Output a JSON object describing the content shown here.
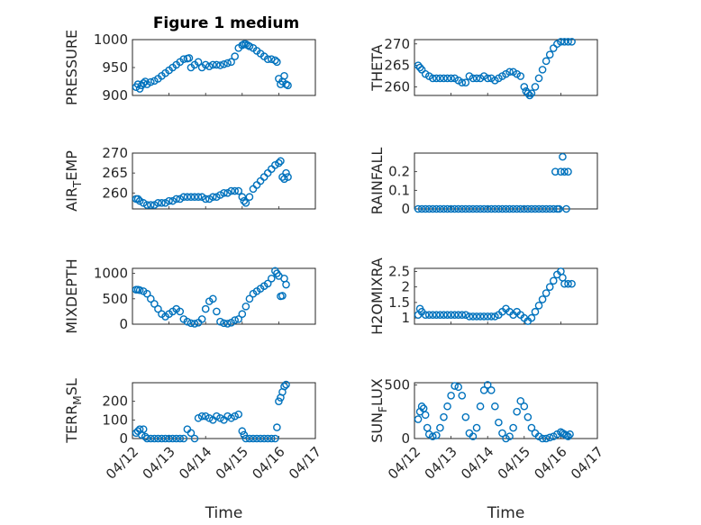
{
  "figure": {
    "title": "Figure 1 medium"
  },
  "colors": {
    "marker": "#0072BD",
    "axes": "#262626",
    "grid": "#dcdcdc"
  },
  "chart_data": [
    {
      "id": "pressure",
      "type": "scatter",
      "title": "Figure 1 medium",
      "ylabel_main": "PRESSURE",
      "ylabel_sub": "",
      "ylabel_tail": "",
      "xlabel": "",
      "ylim": [
        900,
        1000
      ],
      "xlim": [
        0,
        5
      ],
      "yticks": [
        900,
        950,
        1000
      ],
      "yticks_labels": [
        "900",
        "950",
        "1000"
      ],
      "xticks_labels": [],
      "series": [
        {
          "x": [
            0.1,
            0.15,
            0.2,
            0.25,
            0.3,
            0.35,
            0.4,
            0.5,
            0.6,
            0.7,
            0.8,
            0.9,
            1.0,
            1.1,
            1.2,
            1.3,
            1.4,
            1.5,
            1.55,
            1.6,
            1.7,
            1.8,
            1.9,
            2.0,
            2.1,
            2.2,
            2.3,
            2.4,
            2.5,
            2.6,
            2.7,
            2.8,
            2.9,
            3.0,
            3.05,
            3.1,
            3.15,
            3.2,
            3.3,
            3.4,
            3.5,
            3.6,
            3.7,
            3.8,
            3.9,
            3.95,
            4.0,
            4.05,
            4.1,
            4.15,
            4.2,
            4.25
          ],
          "y": [
            915,
            920,
            912,
            918,
            922,
            925,
            920,
            924,
            926,
            930,
            935,
            940,
            945,
            950,
            955,
            960,
            965,
            966,
            967,
            950,
            955,
            960,
            950,
            955,
            952,
            955,
            955,
            954,
            956,
            958,
            960,
            970,
            985,
            990,
            992,
            992,
            990,
            988,
            985,
            980,
            975,
            970,
            965,
            965,
            963,
            960,
            930,
            920,
            925,
            935,
            920,
            918
          ]
        }
      ]
    },
    {
      "id": "theta",
      "type": "scatter",
      "ylabel_main": "THETA",
      "ylabel_sub": "",
      "ylabel_tail": "",
      "xlabel": "",
      "ylim": [
        258,
        271
      ],
      "xlim": [
        0,
        5
      ],
      "yticks": [
        260,
        265,
        270
      ],
      "yticks_labels": [
        "260",
        "265",
        "270"
      ],
      "xticks_labels": [],
      "series": [
        {
          "x": [
            0.1,
            0.15,
            0.2,
            0.3,
            0.4,
            0.5,
            0.6,
            0.7,
            0.8,
            0.9,
            1.0,
            1.1,
            1.2,
            1.3,
            1.4,
            1.5,
            1.6,
            1.7,
            1.8,
            1.9,
            2.0,
            2.1,
            2.2,
            2.3,
            2.4,
            2.5,
            2.6,
            2.7,
            2.8,
            2.9,
            3.0,
            3.05,
            3.1,
            3.15,
            3.2,
            3.3,
            3.4,
            3.5,
            3.6,
            3.7,
            3.8,
            3.9,
            4.0,
            4.1,
            4.2,
            4.3
          ],
          "y": [
            265,
            264.5,
            264,
            263,
            262.5,
            262,
            262,
            262,
            262,
            262,
            262,
            262,
            261.5,
            261,
            261,
            262.5,
            262,
            262,
            262,
            262.5,
            262,
            262,
            261.5,
            262,
            262.5,
            263,
            263.5,
            263.5,
            263,
            262.5,
            260,
            259,
            258.5,
            258,
            258.5,
            260,
            262,
            264,
            266,
            267.5,
            269,
            270,
            270.5,
            270.5,
            270.5,
            270.5
          ]
        }
      ]
    },
    {
      "id": "air_temp",
      "type": "scatter",
      "ylabel_main": "AIR",
      "ylabel_sub": "T",
      "ylabel_tail": "EMP",
      "xlabel": "",
      "ylim": [
        256,
        270
      ],
      "xlim": [
        0,
        5
      ],
      "yticks": [
        260,
        265,
        270
      ],
      "yticks_labels": [
        "260",
        "265",
        "270"
      ],
      "xticks_labels": [],
      "series": [
        {
          "x": [
            0.1,
            0.15,
            0.2,
            0.3,
            0.4,
            0.5,
            0.6,
            0.7,
            0.8,
            0.9,
            1.0,
            1.1,
            1.2,
            1.3,
            1.4,
            1.5,
            1.6,
            1.7,
            1.8,
            1.9,
            2.0,
            2.1,
            2.2,
            2.3,
            2.4,
            2.5,
            2.6,
            2.7,
            2.8,
            2.9,
            3.0,
            3.05,
            3.1,
            3.2,
            3.3,
            3.4,
            3.5,
            3.6,
            3.7,
            3.8,
            3.9,
            4.0,
            4.05,
            4.1,
            4.15,
            4.2,
            4.25
          ],
          "y": [
            258.5,
            258.5,
            258,
            257.5,
            257,
            257,
            257,
            257.5,
            257.5,
            257.5,
            258,
            258,
            258.5,
            258.5,
            259,
            259,
            259,
            259,
            259,
            259,
            258.5,
            258.5,
            259,
            259,
            259.5,
            260,
            260,
            260.5,
            260.5,
            260.5,
            259,
            258,
            257.5,
            259,
            261,
            262,
            263,
            264,
            265,
            266,
            267,
            267.5,
            268,
            264,
            263.5,
            265,
            264
          ]
        }
      ]
    },
    {
      "id": "rainfall",
      "type": "scatter",
      "ylabel_main": "RAINFALL",
      "ylabel_sub": "",
      "ylabel_tail": "",
      "xlabel": "",
      "ylim": [
        0,
        0.3
      ],
      "xlim": [
        0,
        5
      ],
      "yticks": [
        0,
        0.1,
        0.2
      ],
      "yticks_labels": [
        "0",
        "0.1",
        "0.2"
      ],
      "xticks_labels": [],
      "series": [
        {
          "x": [
            0.1,
            0.2,
            0.3,
            0.4,
            0.5,
            0.6,
            0.7,
            0.8,
            0.9,
            1.0,
            1.1,
            1.2,
            1.3,
            1.4,
            1.5,
            1.6,
            1.7,
            1.8,
            1.9,
            2.0,
            2.1,
            2.2,
            2.3,
            2.4,
            2.5,
            2.6,
            2.7,
            2.8,
            2.9,
            3.0,
            3.1,
            3.2,
            3.3,
            3.4,
            3.5,
            3.6,
            3.7,
            3.8,
            3.85,
            3.9,
            3.95,
            4.0,
            4.05,
            4.1,
            4.15,
            4.2
          ],
          "y": [
            0,
            0,
            0,
            0,
            0,
            0,
            0,
            0,
            0,
            0,
            0,
            0,
            0,
            0,
            0,
            0,
            0,
            0,
            0,
            0,
            0,
            0,
            0,
            0,
            0,
            0,
            0,
            0,
            0,
            0,
            0,
            0,
            0,
            0,
            0,
            0,
            0,
            0,
            0.2,
            0,
            0,
            0.2,
            0.28,
            0.2,
            0,
            0.2
          ]
        }
      ]
    },
    {
      "id": "mixdepth",
      "type": "scatter",
      "ylabel_main": "MIXDEPTH",
      "ylabel_sub": "",
      "ylabel_tail": "",
      "xlabel": "",
      "ylim": [
        0,
        1100
      ],
      "xlim": [
        0,
        5
      ],
      "yticks": [
        0,
        500,
        1000
      ],
      "yticks_labels": [
        "0",
        "500",
        "1000"
      ],
      "xticks_labels": [],
      "series": [
        {
          "x": [
            0.1,
            0.15,
            0.2,
            0.3,
            0.4,
            0.5,
            0.6,
            0.7,
            0.8,
            0.9,
            1.0,
            1.1,
            1.2,
            1.3,
            1.4,
            1.5,
            1.6,
            1.7,
            1.8,
            1.9,
            2.0,
            2.1,
            2.2,
            2.3,
            2.4,
            2.5,
            2.6,
            2.7,
            2.8,
            2.9,
            3.0,
            3.1,
            3.2,
            3.3,
            3.4,
            3.5,
            3.6,
            3.7,
            3.8,
            3.9,
            3.95,
            4.0,
            4.05,
            4.1,
            4.15,
            4.2
          ],
          "y": [
            680,
            680,
            670,
            650,
            600,
            500,
            400,
            300,
            200,
            150,
            200,
            250,
            300,
            250,
            100,
            50,
            20,
            10,
            30,
            100,
            300,
            450,
            500,
            250,
            50,
            20,
            10,
            30,
            80,
            100,
            200,
            350,
            500,
            600,
            650,
            700,
            750,
            800,
            900,
            1050,
            1000,
            950,
            550,
            560,
            900,
            780
          ]
        }
      ]
    },
    {
      "id": "h2omixra",
      "type": "scatter",
      "ylabel_main": "H2OMIXRA",
      "ylabel_sub": "",
      "ylabel_tail": "",
      "xlabel": "",
      "ylim": [
        0.8,
        2.6
      ],
      "xlim": [
        0,
        5
      ],
      "yticks": [
        1,
        1.5,
        2,
        2.5
      ],
      "yticks_labels": [
        "1",
        "1.5",
        "2",
        "2.5"
      ],
      "xticks_labels": [],
      "series": [
        {
          "x": [
            0.1,
            0.15,
            0.2,
            0.3,
            0.4,
            0.5,
            0.6,
            0.7,
            0.8,
            0.9,
            1.0,
            1.1,
            1.2,
            1.3,
            1.4,
            1.5,
            1.6,
            1.7,
            1.8,
            1.9,
            2.0,
            2.1,
            2.2,
            2.3,
            2.4,
            2.5,
            2.6,
            2.7,
            2.8,
            2.9,
            3.0,
            3.1,
            3.2,
            3.3,
            3.4,
            3.5,
            3.6,
            3.7,
            3.8,
            3.9,
            4.0,
            4.05,
            4.1,
            4.2,
            4.3
          ],
          "y": [
            1.1,
            1.3,
            1.2,
            1.1,
            1.1,
            1.1,
            1.1,
            1.1,
            1.1,
            1.1,
            1.1,
            1.1,
            1.1,
            1.1,
            1.1,
            1.05,
            1.05,
            1.05,
            1.05,
            1.05,
            1.05,
            1.05,
            1.05,
            1.1,
            1.2,
            1.3,
            1.2,
            1.1,
            1.2,
            1.1,
            1.0,
            0.9,
            1.0,
            1.2,
            1.4,
            1.6,
            1.8,
            2.0,
            2.2,
            2.4,
            2.5,
            2.3,
            2.1,
            2.1,
            2.1
          ]
        }
      ]
    },
    {
      "id": "terr_msl",
      "type": "scatter",
      "ylabel_main": "TERR",
      "ylabel_sub": "M",
      "ylabel_tail": "SL",
      "xlabel": "Time",
      "ylim": [
        0,
        300
      ],
      "xlim": [
        0,
        5
      ],
      "yticks": [
        0,
        100,
        200
      ],
      "yticks_labels": [
        "0",
        "100",
        "200"
      ],
      "xticks_labels": [
        "04/12",
        "04/13",
        "04/14",
        "04/15",
        "04/16",
        "04/17"
      ],
      "series": [
        {
          "x": [
            0.1,
            0.15,
            0.2,
            0.25,
            0.3,
            0.35,
            0.4,
            0.5,
            0.6,
            0.7,
            0.8,
            0.9,
            1.0,
            1.1,
            1.2,
            1.3,
            1.4,
            1.5,
            1.6,
            1.7,
            1.8,
            1.9,
            2.0,
            2.1,
            2.2,
            2.3,
            2.4,
            2.5,
            2.6,
            2.7,
            2.8,
            2.9,
            3.0,
            3.05,
            3.1,
            3.2,
            3.3,
            3.4,
            3.5,
            3.6,
            3.7,
            3.8,
            3.9,
            3.95,
            4.0,
            4.05,
            4.1,
            4.15,
            4.2
          ],
          "y": [
            30,
            40,
            50,
            20,
            50,
            10,
            0,
            0,
            0,
            0,
            0,
            0,
            0,
            0,
            0,
            0,
            0,
            50,
            30,
            0,
            110,
            120,
            120,
            110,
            100,
            120,
            110,
            100,
            120,
            110,
            120,
            130,
            40,
            20,
            0,
            0,
            0,
            0,
            0,
            0,
            0,
            0,
            0,
            60,
            200,
            220,
            250,
            280,
            290
          ]
        }
      ]
    },
    {
      "id": "sun_flux",
      "type": "scatter",
      "ylabel_main": "SUN",
      "ylabel_sub": "F",
      "ylabel_tail": "LUX",
      "xlabel": "Time",
      "ylim": [
        0,
        520
      ],
      "xlim": [
        0,
        5
      ],
      "yticks": [
        0,
        500
      ],
      "yticks_labels": [
        "0",
        "500"
      ],
      "xticks_labels": [
        "04/12",
        "04/13",
        "04/14",
        "04/15",
        "04/16",
        "04/17"
      ],
      "series": [
        {
          "x": [
            0.1,
            0.15,
            0.2,
            0.25,
            0.3,
            0.35,
            0.4,
            0.5,
            0.6,
            0.7,
            0.8,
            0.9,
            1.0,
            1.1,
            1.2,
            1.3,
            1.4,
            1.5,
            1.6,
            1.7,
            1.8,
            1.9,
            2.0,
            2.1,
            2.2,
            2.3,
            2.4,
            2.5,
            2.6,
            2.7,
            2.8,
            2.9,
            3.0,
            3.1,
            3.2,
            3.3,
            3.4,
            3.5,
            3.6,
            3.7,
            3.8,
            3.9,
            4.0,
            4.05,
            4.1,
            4.15,
            4.2,
            4.25
          ],
          "y": [
            180,
            250,
            300,
            280,
            220,
            100,
            40,
            20,
            30,
            100,
            200,
            300,
            400,
            490,
            480,
            400,
            200,
            50,
            20,
            100,
            300,
            450,
            500,
            450,
            300,
            150,
            50,
            0,
            20,
            100,
            250,
            350,
            300,
            200,
            100,
            50,
            20,
            0,
            0,
            10,
            20,
            40,
            60,
            50,
            40,
            30,
            20,
            40
          ]
        }
      ]
    }
  ]
}
